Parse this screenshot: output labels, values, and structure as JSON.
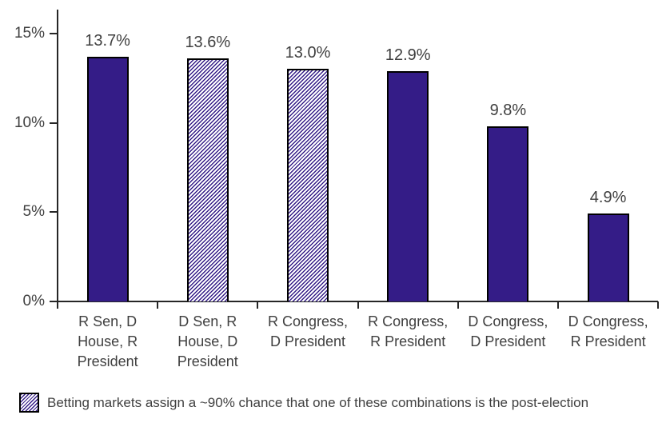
{
  "chart_data": {
    "type": "bar",
    "title": "",
    "xlabel": "",
    "ylabel": "",
    "grid": false,
    "categories": [
      "R Sen, D House, R President",
      "D Sen, R House, D President",
      "R Congress, D President",
      "R Congress, R President",
      "D Congress, D President",
      "D Congress, R President"
    ],
    "category_lines": [
      [
        "R Sen, D",
        "House, R",
        "President"
      ],
      [
        "D Sen, R",
        "House, D",
        "President"
      ],
      [
        "R Congress,",
        "D President"
      ],
      [
        "R Congress,",
        "R President"
      ],
      [
        "D Congress,",
        "D President"
      ],
      [
        "D Congress,",
        "R President"
      ]
    ],
    "values": [
      13.7,
      13.6,
      13.0,
      12.9,
      9.8,
      4.9
    ],
    "value_labels": [
      "13.7%",
      "13.6%",
      "13.0%",
      "12.9%",
      "9.8%",
      "4.9%"
    ],
    "bar_styles": [
      "solid",
      "hatched",
      "hatched",
      "solid",
      "solid",
      "solid"
    ],
    "ylim": [
      0,
      16.3
    ],
    "y_axis": {
      "tick_values": [
        0,
        5,
        10,
        15
      ],
      "tick_labels": [
        "0%",
        "5%",
        "10%",
        "15%"
      ]
    },
    "legend": {
      "position": "bottom-left",
      "entries": [
        {
          "swatch": "hatched",
          "label": "Betting markets assign a ~90% chance that one of these combinations is the post-election"
        }
      ]
    }
  },
  "colors": {
    "background": "#FFFFFF",
    "bar_fill": "#341C87",
    "bar_border": "#000000",
    "axis": "#262626",
    "text": "#404040"
  }
}
